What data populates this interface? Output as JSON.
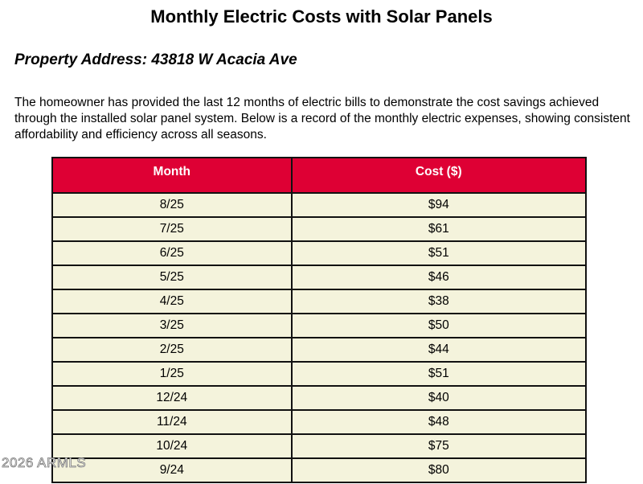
{
  "title": "Monthly Electric Costs with Solar Panels",
  "property_address": "Property Address: 43818 W Acacia Ave",
  "description": "The homeowner has provided the last 12 months of electric bills to demonstrate the cost savings achieved through the installed solar panel system. Below is a record of the monthly electric expenses, showing consistent affordability and efficiency across all seasons.",
  "table": {
    "headers": [
      "Month",
      "Cost ($)"
    ],
    "rows": [
      [
        "8/25",
        "$94"
      ],
      [
        "7/25",
        "$61"
      ],
      [
        "6/25",
        "$51"
      ],
      [
        "5/25",
        "$46"
      ],
      [
        "4/25",
        "$38"
      ],
      [
        "3/25",
        "$50"
      ],
      [
        "2/25",
        "$44"
      ],
      [
        "1/25",
        "$51"
      ],
      [
        "12/24",
        "$40"
      ],
      [
        "11/24",
        "$48"
      ],
      [
        "10/24",
        "$75"
      ],
      [
        "9/24",
        "$80"
      ]
    ],
    "header_color": "#de0034",
    "row_color": "#f4f3dc"
  },
  "watermark": "2026 ARMLS"
}
